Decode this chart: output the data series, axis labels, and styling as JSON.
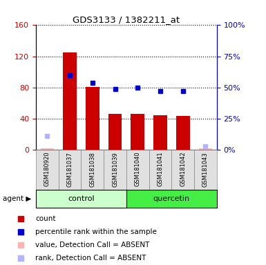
{
  "title": "GDS3133 / 1382211_at",
  "samples": [
    "GSM180920",
    "GSM181037",
    "GSM181038",
    "GSM181039",
    "GSM181040",
    "GSM181041",
    "GSM181042",
    "GSM181043"
  ],
  "count_values": [
    null,
    125,
    81,
    46,
    46,
    44,
    43,
    null
  ],
  "count_absent": [
    2,
    null,
    null,
    null,
    null,
    null,
    null,
    2
  ],
  "rank_values_pct": [
    null,
    60,
    54,
    49,
    50,
    47,
    47,
    null
  ],
  "rank_absent_pct": [
    11,
    null,
    null,
    null,
    null,
    null,
    null,
    3
  ],
  "ylim_left": [
    0,
    160
  ],
  "ylim_right": [
    0,
    100
  ],
  "yticks_left": [
    0,
    40,
    80,
    120,
    160
  ],
  "ytick_labels_left": [
    "0",
    "40",
    "80",
    "120",
    "160"
  ],
  "yticks_right": [
    0,
    25,
    50,
    75,
    100
  ],
  "ytick_labels_right": [
    "0%",
    "25%",
    "50%",
    "75%",
    "100%"
  ],
  "bar_color": "#cc0000",
  "rank_color": "#0000cc",
  "absent_bar_color": "#ffb3b3",
  "absent_rank_color": "#b3b3ff",
  "control_color": "#ccffcc",
  "quercetin_color": "#44ee44",
  "bg_color": "#e0e0e0",
  "left_axis_color": "#cc0000",
  "right_axis_color": "#0000cc",
  "agent_arrow": "▶"
}
